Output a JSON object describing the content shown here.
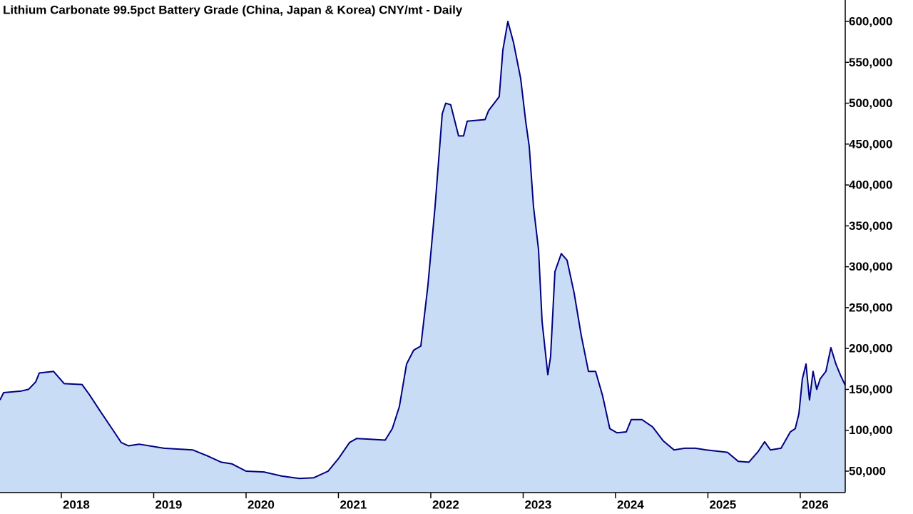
{
  "chart_data": {
    "type": "area",
    "title": "Lithium Carbonate 99.5pct Battery Grade (China, Japan & Korea) CNY/mt - Daily",
    "x": [
      2017.336,
      2017.375,
      2017.568,
      2017.645,
      2017.722,
      2017.761,
      2017.915,
      2018.031,
      2018.224,
      2018.301,
      2018.417,
      2018.572,
      2018.649,
      2018.726,
      2018.842,
      2019.112,
      2019.421,
      2019.575,
      2019.73,
      2019.846,
      2020.0,
      2020.193,
      2020.386,
      2020.579,
      2020.734,
      2020.888,
      2021.004,
      2021.12,
      2021.197,
      2021.506,
      2021.583,
      2021.66,
      2021.738,
      2021.815,
      2021.892,
      2021.969,
      2022.046,
      2022.124,
      2022.162,
      2022.216,
      2022.301,
      2022.355,
      2022.394,
      2022.587,
      2022.626,
      2022.741,
      2022.78,
      2022.834,
      2022.896,
      2022.973,
      2023.027,
      2023.066,
      2023.112,
      2023.166,
      2023.205,
      2023.267,
      2023.297,
      2023.344,
      2023.413,
      2023.475,
      2023.552,
      2023.629,
      2023.707,
      2023.784,
      2023.861,
      2023.938,
      2024.016,
      2024.116,
      2024.17,
      2024.286,
      2024.402,
      2024.517,
      2024.633,
      2024.749,
      2024.865,
      2024.981,
      2025.212,
      2025.328,
      2025.444,
      2025.544,
      2025.614,
      2025.676,
      2025.792,
      2025.892,
      2025.946,
      2025.985,
      2026.023,
      2026.062,
      2026.1,
      2026.139,
      2026.178,
      2026.216,
      2026.278,
      2026.332,
      2026.386,
      2026.433,
      2026.487
    ],
    "series": [
      {
        "color": "#000080",
        "fill": "#c9dcf5",
        "values": [
          137000,
          146000,
          148000,
          150000,
          159000,
          170000,
          172000,
          157000,
          156000,
          144000,
          124000,
          98000,
          85000,
          81000,
          83000,
          78000,
          76000,
          69000,
          61000,
          59000,
          50000,
          49000,
          44000,
          41000,
          42000,
          50000,
          66000,
          85000,
          90000,
          88000,
          102000,
          129000,
          181000,
          198000,
          203000,
          277000,
          373000,
          487000,
          500000,
          498000,
          460000,
          460000,
          478000,
          480000,
          491000,
          508000,
          565000,
          600000,
          574000,
          530000,
          478000,
          447000,
          373000,
          321000,
          233000,
          168000,
          190000,
          294000,
          316000,
          308000,
          268000,
          216000,
          172000,
          172000,
          142000,
          102000,
          97000,
          98000,
          113000,
          113000,
          104000,
          87000,
          76000,
          78000,
          78000,
          76000,
          73000,
          62000,
          61000,
          74000,
          86000,
          76000,
          78000,
          98000,
          102000,
          120000,
          163000,
          181000,
          137000,
          172000,
          150000,
          163000,
          172000,
          201000,
          181000,
          168000,
          155000
        ]
      }
    ],
    "xlim": [
      2017.336,
      2026.487
    ],
    "xticks": [
      2018,
      2019,
      2020,
      2021,
      2022,
      2023,
      2024,
      2025,
      2026
    ],
    "ylim": [
      23800,
      626200
    ],
    "yticks": [
      {
        "value": 50000,
        "label": "50,000"
      },
      {
        "value": 100000,
        "label": "100,000"
      },
      {
        "value": 150000,
        "label": "150,000"
      },
      {
        "value": 200000,
        "label": "200,000"
      },
      {
        "value": 250000,
        "label": "250,000"
      },
      {
        "value": 300000,
        "label": "300,000"
      },
      {
        "value": 350000,
        "label": "350,000"
      },
      {
        "value": 400000,
        "label": "400,000"
      },
      {
        "value": 450000,
        "label": "450,000"
      },
      {
        "value": 500000,
        "label": "500,000"
      },
      {
        "value": 550000,
        "label": "550,000"
      },
      {
        "value": 600000,
        "label": "600,000"
      }
    ],
    "y_axis_side": "right"
  }
}
